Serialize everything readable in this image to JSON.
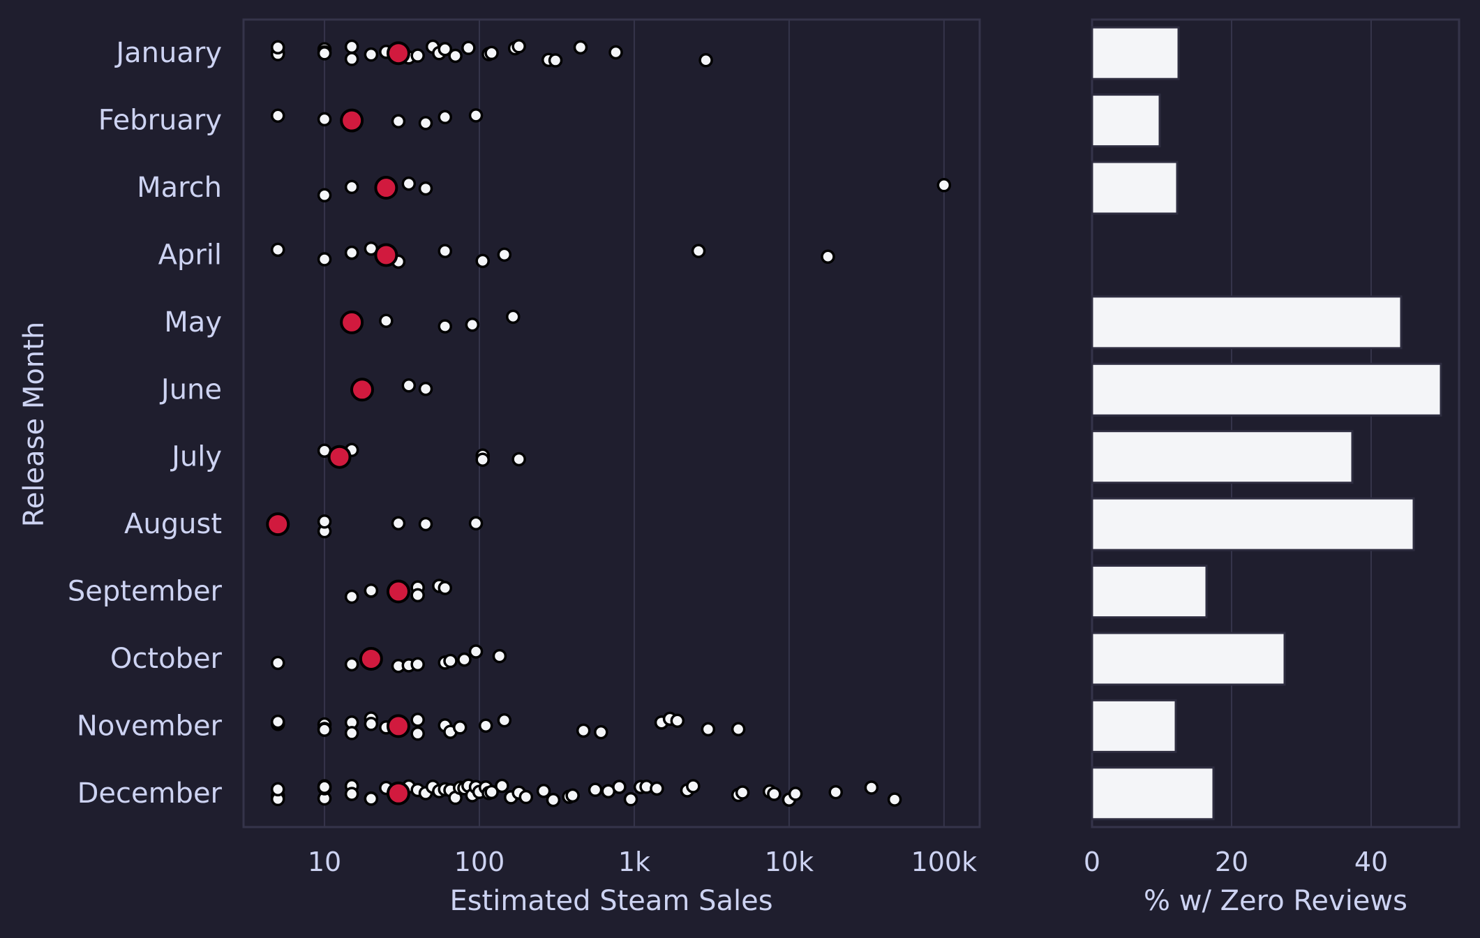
{
  "colors": {
    "background": "#1f1e2e",
    "text": "#cdd3f2",
    "grid": "#35344a",
    "point": "#f4f5f8",
    "median": "#d11a3e",
    "bar": "#f4f5f8"
  },
  "chart_data": [
    {
      "type": "scatter",
      "subtype": "strip plot with median marker",
      "xlabel": "Estimated Steam Sales",
      "ylabel": "Release Month",
      "xscale": "log",
      "xlim": [
        3,
        170000
      ],
      "xticks": [
        10,
        100,
        1000,
        10000,
        100000
      ],
      "xtick_labels": [
        "10",
        "100",
        "1k",
        "10k",
        "100k"
      ],
      "grid": "vertical",
      "categories": [
        "January",
        "February",
        "March",
        "April",
        "May",
        "June",
        "July",
        "August",
        "September",
        "October",
        "November",
        "December"
      ],
      "medians": [
        30,
        15,
        25,
        25,
        15,
        17.5,
        12.5,
        5,
        30,
        20,
        30,
        30
      ],
      "points": [
        [
          5,
          5,
          5,
          10,
          10,
          10,
          15,
          15,
          20,
          25,
          30,
          35,
          40,
          50,
          55,
          60,
          70,
          85,
          115,
          120,
          170,
          180,
          280,
          310,
          450,
          760,
          2900
        ],
        [
          5,
          10,
          30,
          45,
          60,
          95
        ],
        [
          10,
          15,
          35,
          45,
          100000
        ],
        [
          5,
          10,
          15,
          15,
          20,
          30,
          60,
          105,
          145,
          2600,
          17800
        ],
        [
          25,
          60,
          90,
          165
        ],
        [
          35,
          45
        ],
        [
          10,
          15,
          105,
          105,
          180
        ],
        [
          10,
          10,
          30,
          45,
          95
        ],
        [
          15,
          20,
          20,
          30,
          40,
          40,
          55,
          60
        ],
        [
          5,
          15,
          30,
          35,
          40,
          60,
          65,
          80,
          95,
          135
        ],
        [
          5,
          5,
          10,
          10,
          10,
          15,
          15,
          20,
          20,
          25,
          30,
          40,
          40,
          60,
          65,
          75,
          110,
          145,
          470,
          610,
          1500,
          1700,
          1900,
          3000,
          4700
        ],
        [
          5,
          5,
          5,
          10,
          10,
          10,
          10,
          15,
          15,
          20,
          20,
          25,
          30,
          35,
          40,
          45,
          50,
          55,
          60,
          65,
          70,
          75,
          80,
          85,
          90,
          95,
          100,
          110,
          115,
          120,
          140,
          160,
          180,
          200,
          260,
          300,
          380,
          400,
          560,
          680,
          800,
          950,
          1100,
          1200,
          1400,
          2200,
          2400,
          4700,
          5000,
          7500,
          8000,
          10000,
          11000,
          20000,
          34000,
          48000
        ]
      ]
    },
    {
      "type": "bar",
      "orientation": "horizontal",
      "xlabel": "% w/ Zero Reviews",
      "xlim": [
        0,
        52.6
      ],
      "xticks": [
        0,
        20,
        40
      ],
      "xtick_labels": [
        "0",
        "20",
        "40"
      ],
      "grid": "vertical",
      "categories": [
        "January",
        "February",
        "March",
        "April",
        "May",
        "June",
        "July",
        "August",
        "September",
        "October",
        "November",
        "December"
      ],
      "values": [
        12.4,
        9.7,
        12.2,
        0,
        44.3,
        50.0,
        37.3,
        46.1,
        16.4,
        27.6,
        12.0,
        17.4
      ]
    }
  ]
}
